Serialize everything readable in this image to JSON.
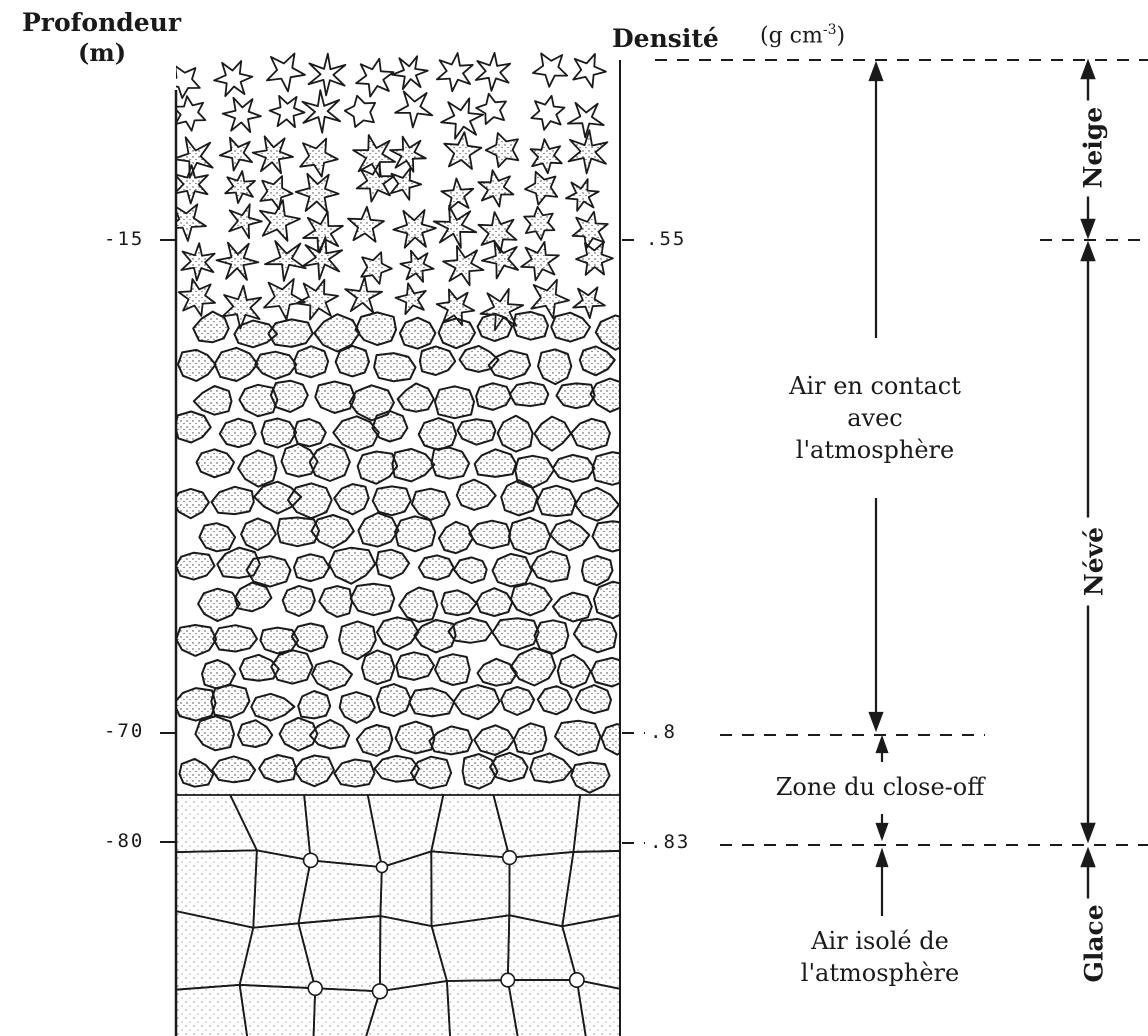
{
  "axis_left": {
    "title": "Profondeur",
    "unit": "(m)",
    "ticks": [
      "-15",
      "-70",
      "-80"
    ]
  },
  "axis_right": {
    "title": "Densité",
    "unit_prefix": "(g cm",
    "unit_exponent": "-3",
    "unit_suffix": ")",
    "ticks": [
      ".55",
      ".8",
      ".83"
    ]
  },
  "zones": {
    "air_contact": [
      "Air en contact",
      "avec",
      "l'atmosphère"
    ],
    "close_off": "Zone du close-off",
    "air_isole": [
      "Air isolé de",
      "l'atmosphère"
    ]
  },
  "layers": {
    "snow": "Neige",
    "firn": "Névé",
    "ice": "Glace"
  },
  "colors": {
    "ink": "#1a1a1a",
    "stipple": "#3a3a3a",
    "paper": "#ffffff"
  }
}
